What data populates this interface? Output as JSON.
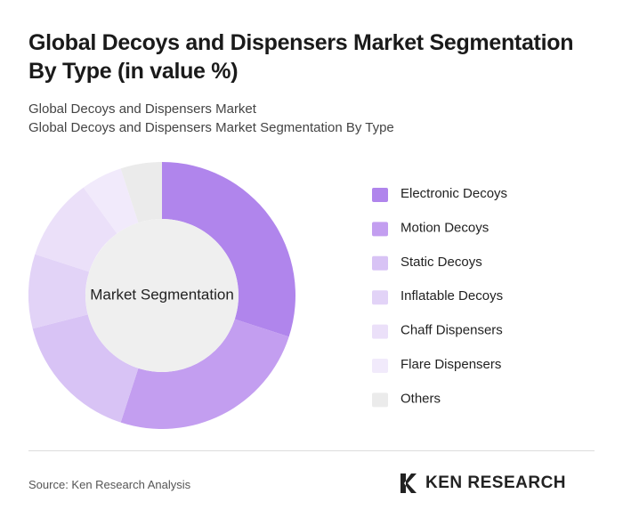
{
  "chart_data": {
    "type": "donut",
    "title": "Global Decoys and Dispensers Market Segmentation By Type (in value %)",
    "subtitle": [
      "Global Decoys and Dispensers Market",
      "Global Decoys and Dispensers Market Segmentation By Type"
    ],
    "center_label": "Market Segmentation",
    "categories": [
      "Electronic Decoys",
      "Motion Decoys",
      "Static Decoys",
      "Inflatable Decoys",
      "Chaff Dispensers",
      "Flare Dispensers",
      "Others"
    ],
    "values": [
      30,
      25,
      16,
      9,
      10,
      5,
      5
    ],
    "colors": [
      "#b085ec",
      "#c39ef0",
      "#d8c3f5",
      "#e2d3f7",
      "#ebe0f9",
      "#f1eafb",
      "#ebebeb"
    ],
    "source": "Source: Ken Research Analysis",
    "brand": "KEN RESEARCH"
  }
}
